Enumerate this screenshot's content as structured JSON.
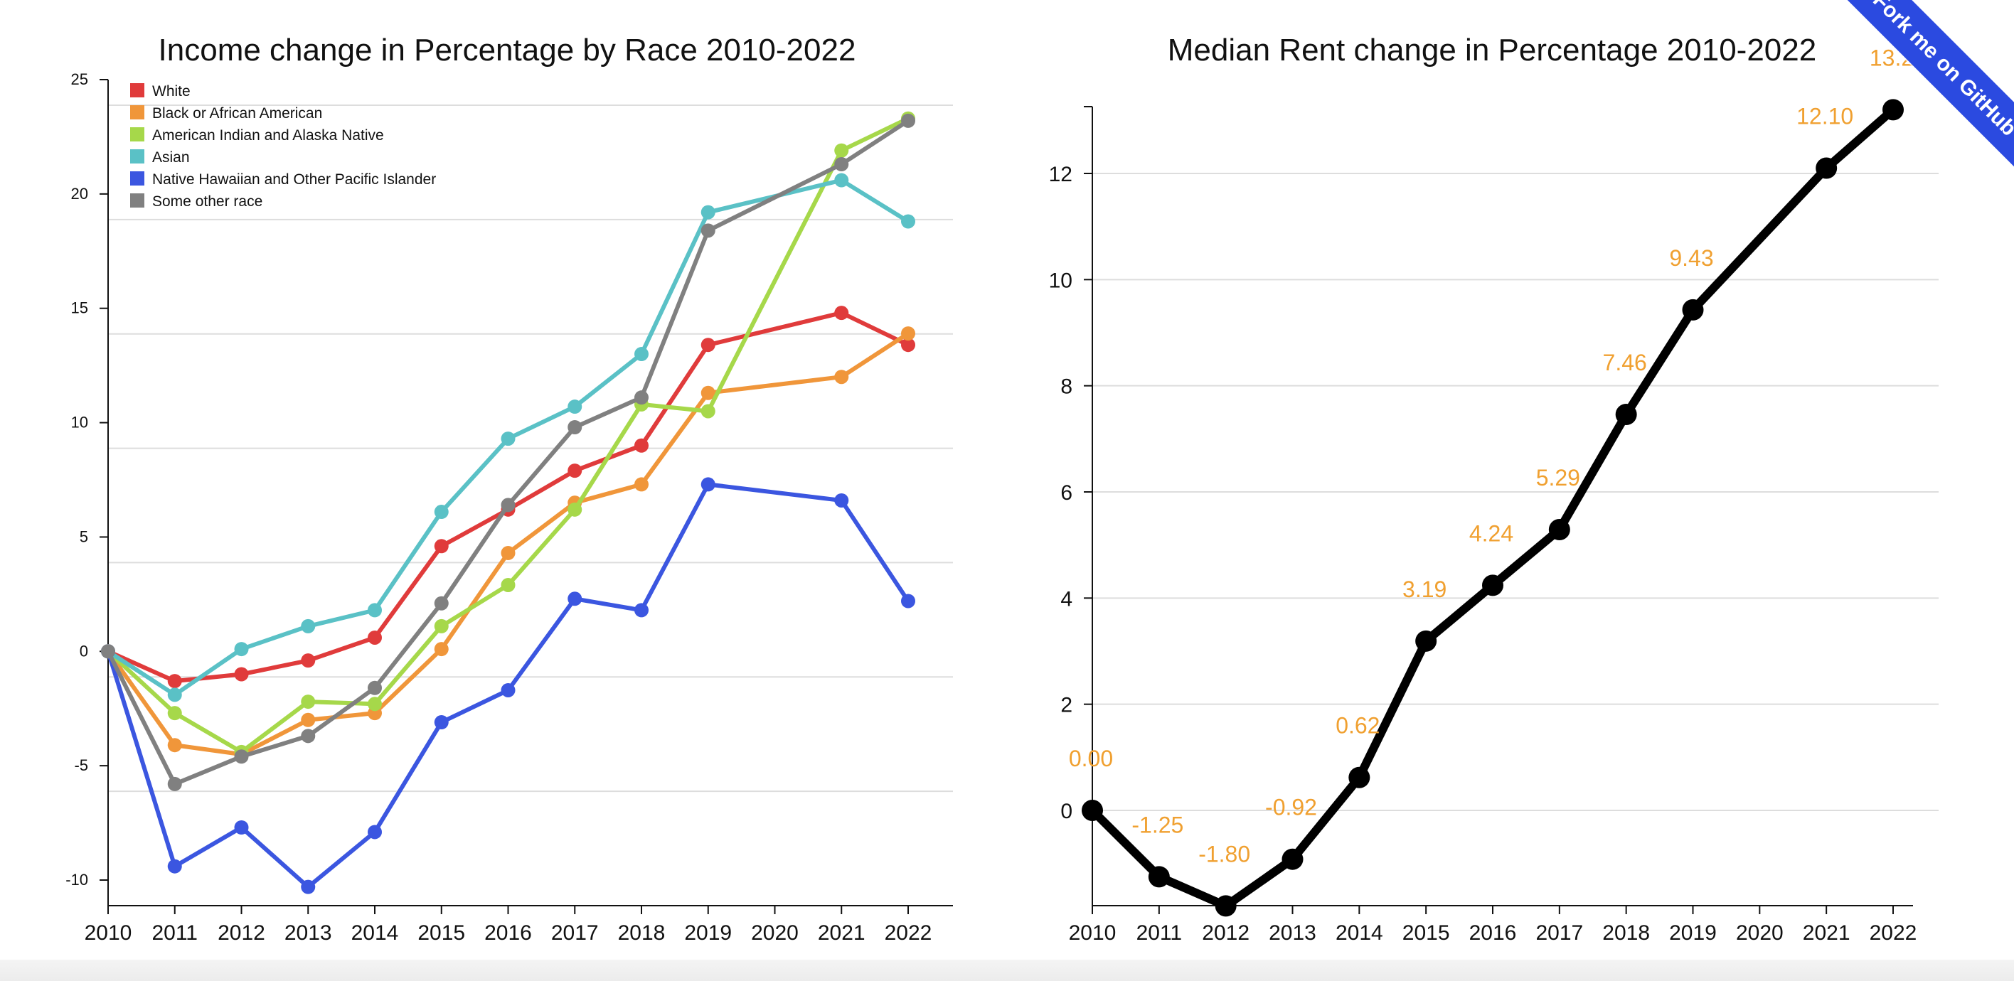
{
  "colors": {
    "white": "#e03b3b",
    "black": "#f0963a",
    "aian": "#a6d84a",
    "asian": "#5ac1c6",
    "nhpi": "#3b56e0",
    "other": "#808080",
    "rent_line": "#000000",
    "rent_label": "#f0a030",
    "ribbon": "#2b4ae0"
  },
  "ribbon": {
    "label": "Fork me on GitHub"
  },
  "chart_data": [
    {
      "type": "line",
      "title": "Income change in Percentage by Race 2010-2022",
      "xlabel": "",
      "ylabel": "",
      "x": [
        2010,
        2011,
        2012,
        2013,
        2014,
        2015,
        2016,
        2017,
        2018,
        2019,
        2020,
        2021,
        2022
      ],
      "x_ticks": [
        "2010",
        "2011",
        "2012",
        "2013",
        "2014",
        "2015",
        "2016",
        "2017",
        "2018",
        "2019",
        "2020",
        "2021",
        "2022"
      ],
      "y_ticks": [
        "25",
        "20",
        "15",
        "10",
        "5",
        "0",
        "-5",
        "-10"
      ],
      "ylim": [
        -11,
        25
      ],
      "grid": true,
      "legend": "top-left",
      "series": [
        {
          "name": "White",
          "color_key": "white",
          "x": [
            2010,
            2011,
            2012,
            2013,
            2014,
            2015,
            2016,
            2017,
            2018,
            2019,
            2021,
            2022
          ],
          "values": [
            0,
            -1.3,
            -1,
            -0.4,
            0.6,
            4.6,
            6.2,
            7.9,
            9,
            13.4,
            14.8,
            13.4
          ]
        },
        {
          "name": "Black or African American",
          "color_key": "black",
          "x": [
            2010,
            2011,
            2012,
            2013,
            2014,
            2015,
            2016,
            2017,
            2018,
            2019,
            2021,
            2022
          ],
          "values": [
            0,
            -4.1,
            -4.5,
            -3,
            -2.7,
            0.1,
            4.3,
            6.5,
            7.3,
            11.3,
            12,
            13.9
          ]
        },
        {
          "name": "American Indian and Alaska Native",
          "color_key": "aian",
          "x": [
            2010,
            2011,
            2012,
            2013,
            2014,
            2015,
            2016,
            2017,
            2018,
            2019,
            2021,
            2022
          ],
          "values": [
            0,
            -2.7,
            -4.4,
            -2.2,
            -2.3,
            1.1,
            2.9,
            6.2,
            10.8,
            10.5,
            21.9,
            23.3
          ]
        },
        {
          "name": "Asian",
          "color_key": "asian",
          "x": [
            2010,
            2011,
            2012,
            2013,
            2014,
            2015,
            2016,
            2017,
            2018,
            2019,
            2021,
            2022
          ],
          "values": [
            0,
            -1.9,
            0.1,
            1.1,
            1.8,
            6.1,
            9.3,
            10.7,
            13,
            19.2,
            20.6,
            18.8
          ]
        },
        {
          "name": "Native Hawaiian and Other Pacific Islander",
          "color_key": "nhpi",
          "x": [
            2010,
            2011,
            2012,
            2013,
            2014,
            2015,
            2016,
            2017,
            2018,
            2019,
            2021,
            2022
          ],
          "values": [
            0,
            -9.4,
            -7.7,
            -10.3,
            -7.9,
            -3.1,
            -1.7,
            2.3,
            1.8,
            7.3,
            6.6,
            2.2
          ]
        },
        {
          "name": "Some other race",
          "color_key": "other",
          "x": [
            2010,
            2011,
            2012,
            2013,
            2014,
            2015,
            2016,
            2017,
            2018,
            2019,
            2021,
            2022
          ],
          "values": [
            0,
            -5.8,
            -4.6,
            -3.7,
            -1.6,
            2.1,
            6.4,
            9.8,
            11.1,
            18.4,
            21.3,
            23.2
          ]
        }
      ]
    },
    {
      "type": "line",
      "title": "Median Rent change in Percentage 2010-2022",
      "xlabel": "",
      "ylabel": "",
      "x": [
        2010,
        2011,
        2012,
        2013,
        2014,
        2015,
        2016,
        2017,
        2018,
        2019,
        2021,
        2022
      ],
      "x_ticks": [
        "2010",
        "2011",
        "2012",
        "2013",
        "2014",
        "2015",
        "2016",
        "2017",
        "2018",
        "2019",
        "2020",
        "2021",
        "2022"
      ],
      "y_ticks": [
        "12",
        "10",
        "8",
        "6",
        "4",
        "2",
        "0"
      ],
      "ylim": [
        -1.8,
        13.2
      ],
      "grid": true,
      "values": [
        0,
        -1.25,
        -1.8,
        -0.92,
        0.62,
        3.19,
        4.24,
        5.29,
        7.46,
        9.43,
        12.1,
        13.2
      ],
      "data_labels": [
        "0.00",
        "-1.25",
        "-1.80",
        "-0.92",
        "0.62",
        "3.19",
        "4.24",
        "5.29",
        "7.46",
        "9.43",
        "12.10",
        "13.2"
      ]
    }
  ]
}
